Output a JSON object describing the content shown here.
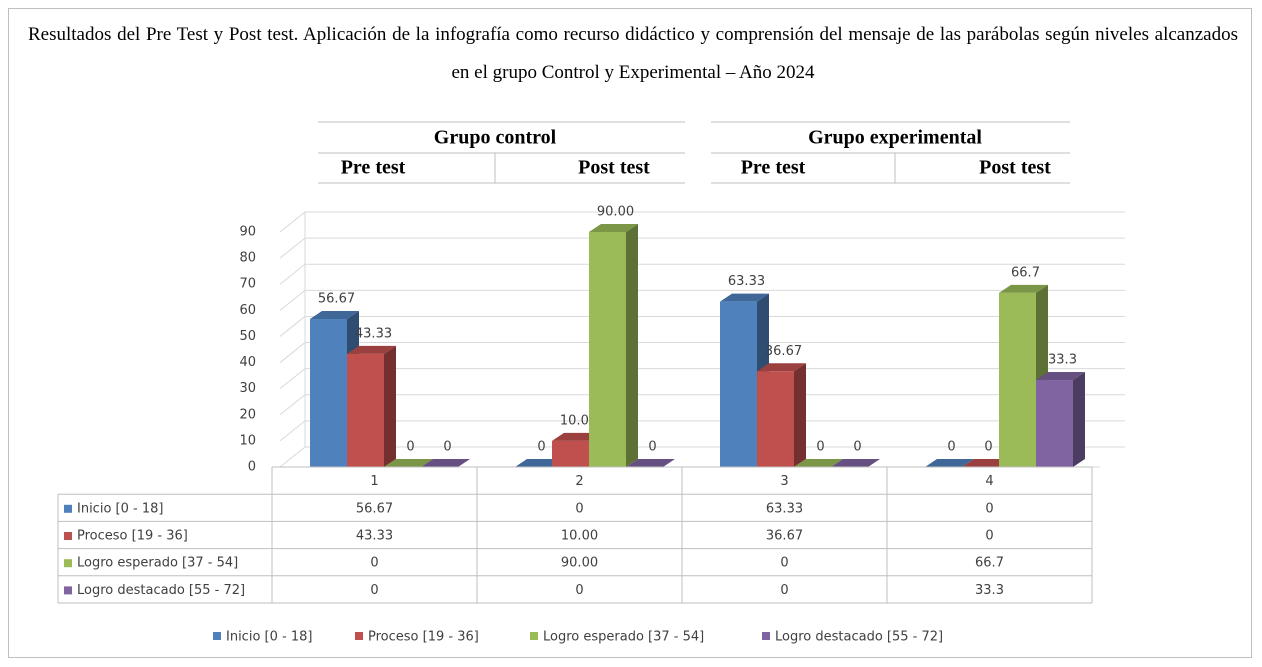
{
  "chart_data": {
    "type": "bar3d",
    "title": "Resultados del Pre Test y Post test. Aplicación de la infografía como recurso didáctico y comprensión del mensaje de las parábolas según niveles alcanzados en el grupo Control y Experimental – Año 2024",
    "groups": [
      {
        "name": "Grupo control",
        "subgroups": [
          "Pre test",
          "Post test"
        ]
      },
      {
        "name": "Grupo experimental",
        "subgroups": [
          "Pre test",
          "Post test"
        ]
      }
    ],
    "categories": [
      "1",
      "2",
      "3",
      "4"
    ],
    "series": [
      {
        "name": "Inicio [0 - 18]",
        "color": "#4f81bd",
        "values": [
          56.67,
          0,
          63.33,
          0
        ],
        "value_labels": [
          "56.67",
          "0",
          "63.33",
          "0"
        ]
      },
      {
        "name": "Proceso  [19 - 36]",
        "color": "#c0504d",
        "values": [
          43.33,
          10,
          36.67,
          0
        ],
        "value_labels": [
          "43.33",
          "10.00",
          "36.67",
          "0"
        ]
      },
      {
        "name": "Logro esperado  [37 - 54]",
        "color": "#9bbb59",
        "values": [
          0,
          90,
          0,
          66.7
        ],
        "value_labels": [
          "0",
          "90.00",
          "0",
          "66.7"
        ]
      },
      {
        "name": "Logro destacado  [55 - 72]",
        "color": "#8064a2",
        "values": [
          0,
          0,
          0,
          33.3
        ],
        "value_labels": [
          "0",
          "0",
          "0",
          "33.3"
        ]
      }
    ],
    "ylim": [
      0,
      90
    ],
    "yticks": [
      0,
      10,
      20,
      30,
      40,
      50,
      60,
      70,
      80,
      90
    ],
    "grid": true,
    "data_table": true,
    "legend": "bottom"
  }
}
